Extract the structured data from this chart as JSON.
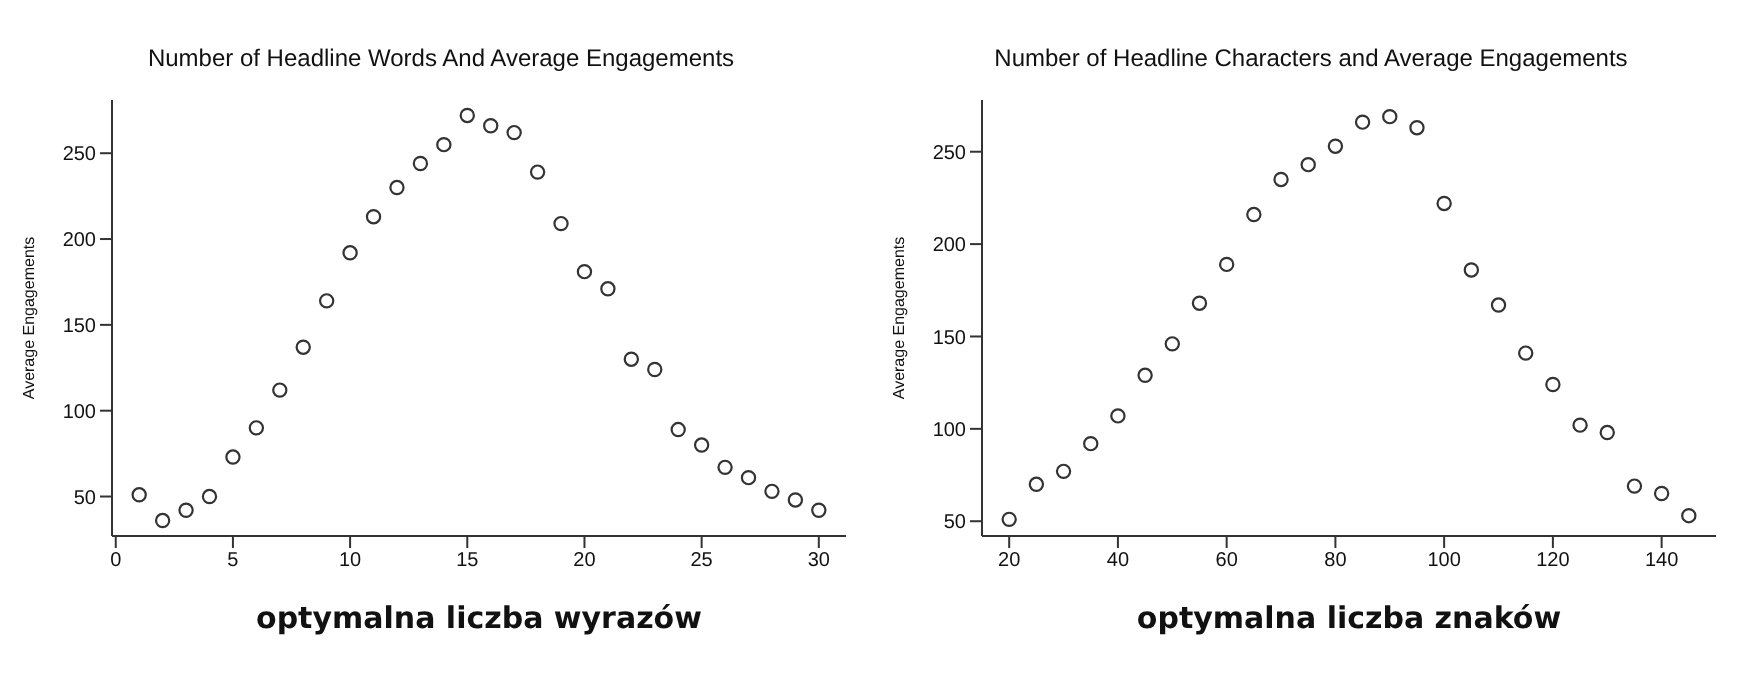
{
  "chart_data": [
    {
      "type": "scatter",
      "title": "Number of Headline Words And Average Engagements",
      "xlabel": "optymalna liczba wyrazów",
      "ylabel": "Average Engagements",
      "marker": "circle",
      "grid": false,
      "legend": false,
      "x": [
        1,
        2,
        3,
        4,
        5,
        6,
        7,
        8,
        9,
        10,
        11,
        12,
        13,
        14,
        15,
        16,
        17,
        18,
        19,
        20,
        21,
        22,
        23,
        24,
        25,
        26,
        27,
        28,
        29,
        30
      ],
      "series": [
        {
          "color": "#333333",
          "values": [
            51,
            36,
            42,
            50,
            73,
            90,
            112,
            137,
            164,
            192,
            213,
            230,
            244,
            255,
            272,
            266,
            262,
            239,
            209,
            181,
            171,
            130,
            124,
            89,
            80,
            67,
            61,
            53,
            48,
            42
          ]
        }
      ],
      "xlim": [
        -0.16,
        31.16
      ],
      "xticks": [
        0,
        5,
        10,
        15,
        20,
        25,
        30
      ],
      "ylim": [
        27,
        281
      ],
      "yticks": [
        50,
        100,
        150,
        200,
        250
      ]
    },
    {
      "type": "scatter",
      "title": "Number of Headline Characters and Average Engagements",
      "xlabel": "optymalna liczba znaków",
      "ylabel": "Average Engagements",
      "marker": "circle",
      "grid": false,
      "legend": false,
      "x": [
        20,
        25,
        30,
        35,
        40,
        45,
        50,
        55,
        60,
        65,
        70,
        75,
        80,
        85,
        90,
        95,
        100,
        105,
        110,
        115,
        120,
        125,
        130,
        135,
        140,
        145
      ],
      "series": [
        {
          "color": "#333333",
          "values": [
            51,
            70,
            77,
            92,
            107,
            129,
            146,
            168,
            189,
            216,
            235,
            243,
            253,
            266,
            269,
            263,
            222,
            186,
            167,
            141,
            124,
            102,
            98,
            69,
            65,
            53
          ]
        }
      ],
      "xlim": [
        15,
        150
      ],
      "xticks": [
        20,
        40,
        60,
        80,
        100,
        120,
        140
      ],
      "ylim": [
        42,
        278
      ],
      "yticks": [
        50,
        100,
        150,
        200,
        250
      ]
    }
  ]
}
